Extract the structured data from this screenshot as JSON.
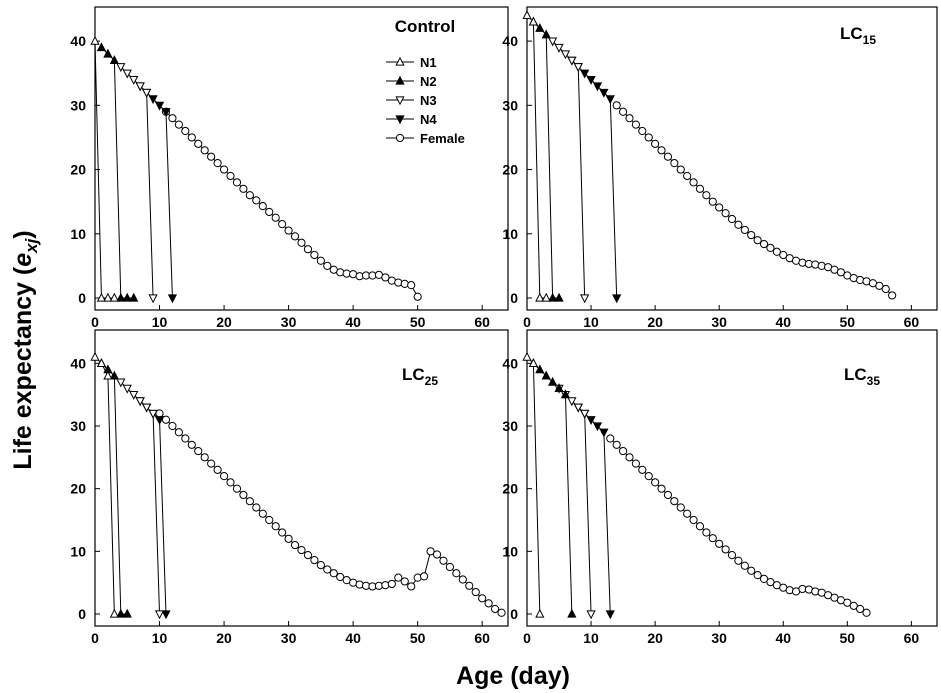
{
  "figure": {
    "ylabel_main": "Life expectancy (",
    "ylabel_var": "e",
    "ylabel_sub": "xj",
    "ylabel_close": ")",
    "xlabel": "Age (day)"
  },
  "legend": {
    "entries": [
      {
        "label": "N1",
        "marker": "triangle-up-open"
      },
      {
        "label": "N2",
        "marker": "triangle-up-filled"
      },
      {
        "label": "N3",
        "marker": "triangle-down-open"
      },
      {
        "label": "N4",
        "marker": "triangle-down-filled"
      },
      {
        "label": "Female",
        "marker": "circle-open"
      }
    ]
  },
  "chart_data": [
    {
      "type": "line",
      "title": "Control",
      "title_main": "Control",
      "title_sub": "",
      "xlim": [
        0,
        64
      ],
      "ylim": [
        0,
        45
      ],
      "xticks": [
        "0",
        "10",
        "20",
        "30",
        "40",
        "50",
        "60"
      ],
      "yticks": [
        "0",
        "10",
        "20",
        "30",
        "40"
      ],
      "series": [
        {
          "name": "N1",
          "marker": "triangle-up-open",
          "x": [
            0,
            1,
            2,
            3
          ],
          "y": [
            40,
            0,
            0,
            0
          ]
        },
        {
          "name": "N2",
          "marker": "triangle-up-filled",
          "x": [
            1,
            2,
            3,
            4,
            5,
            6
          ],
          "y": [
            39,
            38,
            37,
            0,
            0,
            0
          ]
        },
        {
          "name": "N3",
          "marker": "triangle-down-open",
          "x": [
            4,
            5,
            6,
            7,
            8,
            9
          ],
          "y": [
            36,
            35,
            34,
            33,
            32,
            0
          ]
        },
        {
          "name": "N4",
          "marker": "triangle-down-filled",
          "x": [
            7,
            8,
            9,
            10,
            11,
            12
          ],
          "y": [
            33,
            32,
            31,
            30,
            29,
            0
          ]
        },
        {
          "name": "Female",
          "marker": "circle-open",
          "x": [
            11,
            12,
            13,
            14,
            15,
            16,
            17,
            18,
            19,
            20,
            21,
            22,
            23,
            24,
            25,
            26,
            27,
            28,
            29,
            30,
            31,
            32,
            33,
            34,
            35,
            36,
            37,
            38,
            39,
            40,
            41,
            42,
            43,
            44,
            45,
            46,
            47,
            48,
            49,
            50
          ],
          "y": [
            29,
            28,
            27,
            26,
            25,
            24,
            23,
            22,
            21,
            20,
            19,
            18,
            17,
            16,
            15.2,
            14.3,
            13.4,
            12.5,
            11.5,
            10.5,
            9.6,
            8.6,
            7.6,
            6.7,
            5.8,
            5.0,
            4.4,
            4.0,
            3.8,
            3.7,
            3.4,
            3.5,
            3.5,
            3.6,
            3.2,
            2.7,
            2.4,
            2.2,
            2.0,
            0.2
          ]
        }
      ]
    },
    {
      "type": "line",
      "title": "LC15",
      "title_main": "LC",
      "title_sub": "15",
      "xlim": [
        0,
        64
      ],
      "ylim": [
        0,
        45
      ],
      "xticks": [
        "0",
        "10",
        "20",
        "30",
        "40",
        "50",
        "60"
      ],
      "yticks": [
        "0",
        "10",
        "20",
        "30",
        "40"
      ],
      "series": [
        {
          "name": "N1",
          "marker": "triangle-up-open",
          "x": [
            0,
            1,
            2,
            3
          ],
          "y": [
            44,
            43,
            0,
            0
          ]
        },
        {
          "name": "N2",
          "marker": "triangle-up-filled",
          "x": [
            1,
            2,
            3,
            4,
            5
          ],
          "y": [
            43,
            42,
            41,
            0,
            0
          ]
        },
        {
          "name": "N3",
          "marker": "triangle-down-open",
          "x": [
            4,
            5,
            6,
            7,
            8,
            9
          ],
          "y": [
            40,
            39,
            38,
            37,
            36,
            0
          ]
        },
        {
          "name": "N4",
          "marker": "triangle-down-filled",
          "x": [
            7,
            8,
            9,
            10,
            11,
            12,
            13,
            14
          ],
          "y": [
            37,
            36,
            35,
            34,
            33,
            32,
            31,
            0
          ]
        },
        {
          "name": "Female",
          "marker": "circle-open",
          "x": [
            14,
            15,
            16,
            17,
            18,
            19,
            20,
            21,
            22,
            23,
            24,
            25,
            26,
            27,
            28,
            29,
            30,
            31,
            32,
            33,
            34,
            35,
            36,
            37,
            38,
            39,
            40,
            41,
            42,
            43,
            44,
            45,
            46,
            47,
            48,
            49,
            50,
            51,
            52,
            53,
            54,
            55,
            56,
            57
          ],
          "y": [
            30,
            29,
            28,
            27,
            26,
            25,
            24,
            23,
            22,
            21,
            20,
            19,
            18,
            17,
            16,
            15,
            14.1,
            13.2,
            12.3,
            11.4,
            10.6,
            9.8,
            9.0,
            8.4,
            7.8,
            7.2,
            6.7,
            6.2,
            5.8,
            5.5,
            5.3,
            5.2,
            5.0,
            4.8,
            4.4,
            4.0,
            3.5,
            3.1,
            2.8,
            2.6,
            2.3,
            1.9,
            1.4,
            0.4
          ]
        }
      ]
    },
    {
      "type": "line",
      "title": "LC25",
      "title_main": "LC",
      "title_sub": "25",
      "xlim": [
        0,
        64
      ],
      "ylim": [
        0,
        45
      ],
      "xticks": [
        "0",
        "10",
        "20",
        "30",
        "40",
        "50",
        "60"
      ],
      "yticks": [
        "0",
        "10",
        "20",
        "30",
        "40"
      ],
      "series": [
        {
          "name": "N1",
          "marker": "triangle-up-open",
          "x": [
            0,
            1,
            2,
            3
          ],
          "y": [
            41,
            40,
            38,
            0
          ]
        },
        {
          "name": "N2",
          "marker": "triangle-up-filled",
          "x": [
            1,
            2,
            3,
            4,
            5
          ],
          "y": [
            40,
            39,
            38,
            0,
            0
          ]
        },
        {
          "name": "N3",
          "marker": "triangle-down-open",
          "x": [
            4,
            5,
            6,
            7,
            8,
            9,
            10
          ],
          "y": [
            37,
            36,
            35,
            34,
            33,
            32,
            0
          ]
        },
        {
          "name": "N4",
          "marker": "triangle-down-filled",
          "x": [
            7,
            8,
            9,
            10,
            11
          ],
          "y": [
            34,
            33,
            32,
            31,
            0
          ]
        },
        {
          "name": "Female",
          "marker": "circle-open",
          "x": [
            10,
            11,
            12,
            13,
            14,
            15,
            16,
            17,
            18,
            19,
            20,
            21,
            22,
            23,
            24,
            25,
            26,
            27,
            28,
            29,
            30,
            31,
            32,
            33,
            34,
            35,
            36,
            37,
            38,
            39,
            40,
            41,
            42,
            43,
            44,
            45,
            46,
            47,
            48,
            49,
            50,
            51,
            52,
            53,
            54,
            55,
            56,
            57,
            58,
            59,
            60,
            61,
            62,
            63
          ],
          "y": [
            32,
            31,
            30,
            29,
            28,
            27,
            26,
            25,
            24,
            23,
            22,
            21,
            20,
            19,
            18,
            17,
            16,
            15,
            14,
            13,
            12,
            11,
            10.2,
            9.4,
            8.6,
            7.8,
            7.1,
            6.5,
            5.9,
            5.4,
            5.0,
            4.7,
            4.5,
            4.4,
            4.5,
            4.6,
            4.8,
            5.8,
            5.2,
            4.4,
            5.8,
            6.0,
            10.0,
            9.5,
            8.5,
            7.5,
            6.5,
            5.5,
            4.5,
            3.5,
            2.5,
            1.7,
            0.8,
            0.2
          ]
        }
      ]
    },
    {
      "type": "line",
      "title": "LC35",
      "title_main": "LC",
      "title_sub": "35",
      "xlim": [
        0,
        64
      ],
      "ylim": [
        0,
        45
      ],
      "xticks": [
        "0",
        "10",
        "20",
        "30",
        "40",
        "50",
        "60"
      ],
      "yticks": [
        "0",
        "10",
        "20",
        "30",
        "40"
      ],
      "series": [
        {
          "name": "N1",
          "marker": "triangle-up-open",
          "x": [
            0,
            1,
            2
          ],
          "y": [
            41,
            40,
            0
          ]
        },
        {
          "name": "N2",
          "marker": "triangle-up-filled",
          "x": [
            1,
            2,
            3,
            4,
            5,
            6,
            7
          ],
          "y": [
            40,
            39,
            38,
            37,
            36,
            35,
            0
          ]
        },
        {
          "name": "N3",
          "marker": "triangle-down-open",
          "x": [
            5,
            6,
            7,
            8,
            9,
            10
          ],
          "y": [
            36,
            35,
            34,
            33,
            32,
            0
          ]
        },
        {
          "name": "N4",
          "marker": "triangle-down-filled",
          "x": [
            8,
            9,
            10,
            11,
            12,
            13
          ],
          "y": [
            33,
            32,
            31,
            30,
            29,
            0
          ]
        },
        {
          "name": "Female",
          "marker": "circle-open",
          "x": [
            13,
            14,
            15,
            16,
            17,
            18,
            19,
            20,
            21,
            22,
            23,
            24,
            25,
            26,
            27,
            28,
            29,
            30,
            31,
            32,
            33,
            34,
            35,
            36,
            37,
            38,
            39,
            40,
            41,
            42,
            43,
            44,
            45,
            46,
            47,
            48,
            49,
            50,
            51,
            52,
            53
          ],
          "y": [
            28,
            27,
            26,
            25,
            24,
            23,
            22,
            21,
            20,
            19,
            18,
            17,
            16,
            15,
            14,
            13,
            12.1,
            11.2,
            10.3,
            9.4,
            8.5,
            7.7,
            6.9,
            6.2,
            5.6,
            5.1,
            4.6,
            4.2,
            3.8,
            3.6,
            4.0,
            3.9,
            3.6,
            3.4,
            3.0,
            2.6,
            2.2,
            1.8,
            1.3,
            0.8,
            0.2
          ]
        }
      ]
    }
  ]
}
